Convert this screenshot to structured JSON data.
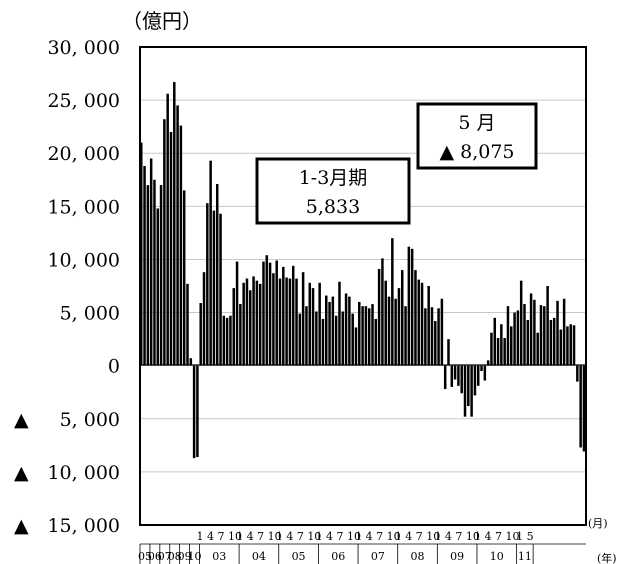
{
  "chart_data": {
    "type": "bar",
    "y_unit": "（億円）",
    "x_unit_month": "(月)",
    "x_unit_year": "(年)",
    "ylim": [
      -15000,
      30000
    ],
    "grid": true,
    "y_ticks": [
      {
        "value": 30000,
        "label": "30, 000",
        "neg": false
      },
      {
        "value": 25000,
        "label": "25, 000",
        "neg": false
      },
      {
        "value": 20000,
        "label": "20, 000",
        "neg": false
      },
      {
        "value": 15000,
        "label": "15, 000",
        "neg": false
      },
      {
        "value": 10000,
        "label": "10, 000",
        "neg": false
      },
      {
        "value": 5000,
        "label": "5, 000",
        "neg": false
      },
      {
        "value": 0,
        "label": "0",
        "neg": false
      },
      {
        "value": -5000,
        "label": "5, 000",
        "neg": true
      },
      {
        "value": -10000,
        "label": "10, 000",
        "neg": true
      },
      {
        "value": -15000,
        "label": "15, 000",
        "neg": true
      }
    ],
    "neg_marker": "▲",
    "month_row": [
      "",
      "",
      "",
      "",
      "",
      "",
      "1 4 7 10",
      "1 4 7 10",
      "1 4 7 10",
      "1 4 7 10",
      "1 4 7 10",
      "1 4 7 10",
      "1 4 7 10",
      "1 4 7 10",
      "1 5"
    ],
    "year_row": [
      "05",
      "06",
      "07",
      "08",
      "09",
      "10",
      "03",
      "04",
      "05",
      "06",
      "07",
      "08",
      "09",
      "10",
      "11"
    ],
    "series": [
      {
        "values": [
          21000,
          18800,
          17000,
          19500,
          17500,
          14800,
          17000,
          23200,
          25600,
          22000,
          26700,
          24500,
          22600,
          16500,
          7700,
          700,
          -8700,
          -8600,
          5900,
          8800,
          15300,
          19300,
          14600,
          17100,
          14300,
          4700,
          4500,
          4700,
          7300,
          9800,
          5800,
          7800,
          8200,
          7100,
          8400,
          8000,
          7700,
          9800,
          10400,
          9700,
          8700,
          9900,
          8200,
          9300,
          8300,
          8200,
          9400,
          8200,
          4900,
          8800,
          5600,
          7800,
          7300,
          5100,
          7800,
          4400,
          6600,
          6000,
          6500,
          4700,
          7900,
          5100,
          6800,
          6500,
          4900,
          3600,
          6000,
          5600,
          5600,
          5400,
          5800,
          4400,
          9100,
          10100,
          8000,
          6500,
          12000,
          6300,
          7300,
          9000,
          5600,
          11200,
          11000,
          9000,
          8100,
          7800,
          5400,
          7500,
          5500,
          4200,
          5400,
          6300,
          -2200,
          2500,
          -2000,
          -1300,
          -1900,
          -2600,
          -4800,
          -3800,
          -4800,
          -2800,
          -1900,
          -500,
          -1400,
          500,
          3100,
          4500,
          2600,
          3900,
          2600,
          5600,
          3700,
          5000,
          5200,
          8000,
          5800,
          4300,
          6800,
          6200,
          3100,
          5700,
          5600,
          7500,
          4300,
          4500,
          6100,
          3400,
          6300,
          3700,
          3900,
          3800,
          -1500,
          -7700,
          -8075
        ]
      }
    ],
    "annotations": [
      {
        "line1": "1-3月期",
        "line2": "5,833"
      },
      {
        "line1": "5 月",
        "line2": "▲ 8,075"
      }
    ]
  }
}
